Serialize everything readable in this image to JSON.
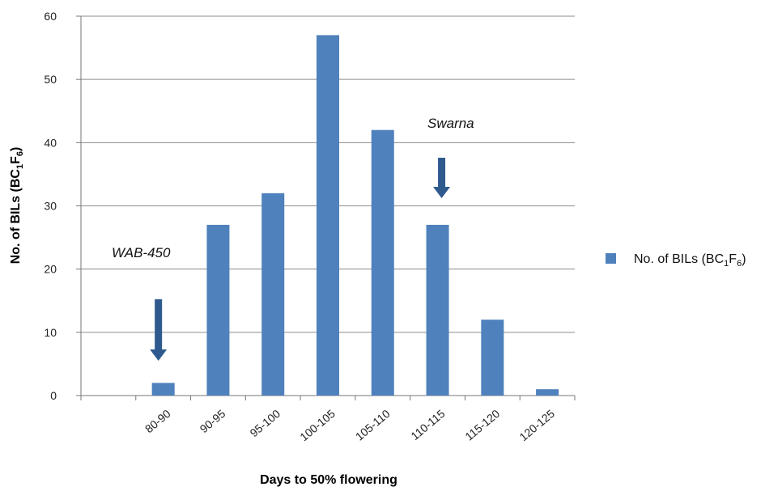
{
  "chart_data": {
    "type": "bar",
    "title": "",
    "categories": [
      "",
      "80-90",
      "90-95",
      "95-100",
      "100-105",
      "105-110",
      "110-115",
      "115-120",
      "120-125"
    ],
    "series": [
      {
        "name": "No. of BILs (BC1F6)",
        "name_parts": {
          "prefix": "No. of BILs (BC",
          "sub1": "1",
          "mid": "F",
          "sub2": "6",
          "suffix": ")"
        },
        "values": [
          null,
          2,
          27,
          32,
          57,
          42,
          27,
          12,
          1
        ]
      }
    ],
    "xlabel": "Days to 50% flowering",
    "ylabel_parts": {
      "prefix": "No. of BILs (BC",
      "sub1": "1",
      "mid": "F",
      "sub2": "6",
      "suffix": ")"
    },
    "ylim": [
      0,
      60
    ],
    "yticks": [
      0,
      10,
      20,
      30,
      40,
      50,
      60
    ],
    "grid": true,
    "legend_position": "right",
    "bar_color": "#4f81bd",
    "arrow_color": "#2e5a8e",
    "annotations": [
      {
        "text": "WAB-450",
        "category": "80-90"
      },
      {
        "text": "Swarna",
        "category": "110-115"
      }
    ]
  }
}
